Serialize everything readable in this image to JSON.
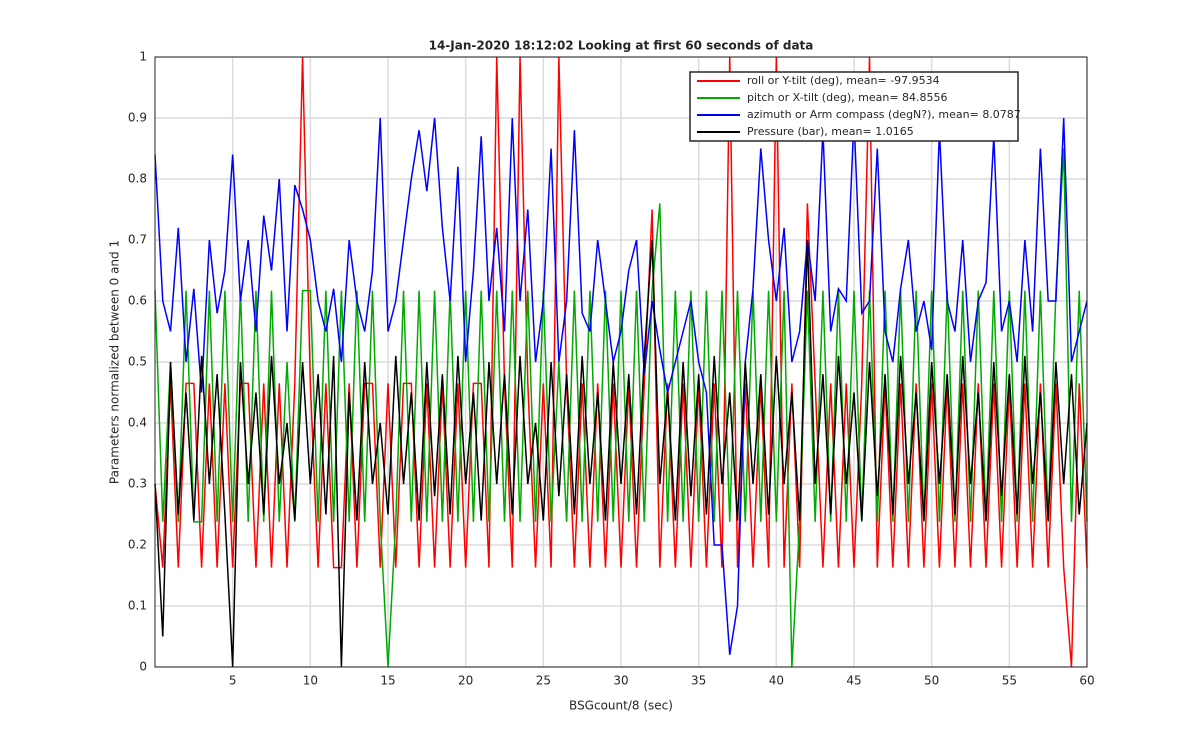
{
  "chart_data": {
    "type": "line",
    "title": "14-Jan-2020 18:12:02 Looking at first 60 seconds of data",
    "x_label": "BSGcount/8 (sec)",
    "y_label": "Parameters normalized between 0 and 1",
    "x": [
      0,
      0.5,
      1,
      1.5,
      2,
      2.5,
      3,
      3.5,
      4,
      4.5,
      5,
      5.5,
      6,
      6.5,
      7,
      7.5,
      8,
      8.5,
      9,
      9.5,
      10,
      10.5,
      11,
      11.5,
      12,
      12.5,
      13,
      13.5,
      14,
      14.5,
      15,
      15.5,
      16,
      16.5,
      17,
      17.5,
      18,
      18.5,
      19,
      19.5,
      20,
      20.5,
      21,
      21.5,
      22,
      22.5,
      23,
      23.5,
      24,
      24.5,
      25,
      25.5,
      26,
      26.5,
      27,
      27.5,
      28,
      28.5,
      29,
      29.5,
      30,
      30.5,
      31,
      31.5,
      32,
      32.5,
      33,
      33.5,
      34,
      34.5,
      35,
      35.5,
      36,
      36.5,
      37,
      37.5,
      38,
      38.5,
      39,
      39.5,
      40,
      40.5,
      41,
      41.5,
      42,
      42.5,
      43,
      43.5,
      44,
      44.5,
      45,
      45.5,
      46,
      46.5,
      47,
      47.5,
      48,
      48.5,
      49,
      49.5,
      50,
      50.5,
      51,
      51.5,
      52,
      52.5,
      53,
      53.5,
      54,
      54.5,
      55,
      55.5,
      56,
      56.5,
      57,
      57.5,
      58,
      58.5,
      59,
      59.5,
      60
    ],
    "series": [
      {
        "name": "roll or Y-tilt (deg), mean= -97.9534",
        "color": "#ff0000",
        "values": [
          0.3,
          0.163,
          0.465,
          0.163,
          0.465,
          0.465,
          0.163,
          0.465,
          0.163,
          0.465,
          0.163,
          0.465,
          0.465,
          0.163,
          0.465,
          0.163,
          0.465,
          0.163,
          0.465,
          1,
          0.465,
          0.163,
          0.465,
          0.163,
          0.163,
          0.465,
          0.163,
          0.465,
          0.465,
          0.163,
          0.465,
          0.163,
          0.465,
          0.465,
          0.163,
          0.465,
          0.163,
          0.465,
          0.163,
          0.465,
          0.163,
          0.465,
          0.465,
          0.163,
          1,
          0.465,
          0.163,
          1,
          0.465,
          0.163,
          0.465,
          0.163,
          1,
          0.465,
          0.163,
          0.465,
          0.163,
          0.465,
          0.163,
          0.465,
          0.163,
          0.465,
          0.163,
          0.465,
          0.75,
          0.163,
          0.465,
          0.163,
          0.465,
          0.163,
          0.465,
          0.163,
          0.465,
          0.163,
          1,
          0.163,
          0.465,
          0.163,
          0.465,
          0.163,
          1,
          0.163,
          0.465,
          0.163,
          0.76,
          0.465,
          0.163,
          0.465,
          0.163,
          0.465,
          0.163,
          0.465,
          1,
          0.163,
          0.465,
          0.163,
          0.465,
          0.163,
          0.465,
          0.163,
          0.465,
          0.163,
          0.465,
          0.163,
          0.465,
          0.163,
          0.465,
          0.163,
          0.465,
          0.163,
          0.465,
          0.163,
          0.465,
          0.163,
          0.465,
          0.163,
          0.465,
          0.163,
          0,
          0.465,
          0.163
        ]
      },
      {
        "name": "pitch or X-tilt (deg), mean= 84.8556",
        "color": "#00aa00",
        "values": [
          0.617,
          0.238,
          0.5,
          0.238,
          0.617,
          0.238,
          0.238,
          0.617,
          0.238,
          0.617,
          0.238,
          0.617,
          0.238,
          0.617,
          0.238,
          0.617,
          0.238,
          0.5,
          0.238,
          0.617,
          0.617,
          0.238,
          0.617,
          0.238,
          0.617,
          0.238,
          0.617,
          0.238,
          0.617,
          0.238,
          0,
          0.238,
          0.617,
          0.238,
          0.617,
          0.238,
          0.617,
          0.238,
          0.617,
          0.238,
          0.617,
          0.238,
          0.617,
          0.238,
          0.617,
          0.238,
          0.617,
          0.238,
          0.617,
          0.238,
          0.617,
          0.238,
          0.5,
          0.238,
          0.617,
          0.238,
          0.617,
          0.238,
          0.617,
          0.238,
          0.617,
          0.238,
          0.617,
          0.238,
          0.617,
          0.76,
          0.238,
          0.617,
          0.238,
          0.617,
          0.238,
          0.617,
          0.238,
          0.617,
          0.238,
          0.617,
          0.238,
          0.617,
          0.238,
          0.617,
          0.238,
          0.617,
          0,
          0.238,
          0.617,
          0.238,
          0.617,
          0.238,
          0.617,
          0.238,
          0.617,
          0.238,
          0.617,
          0.238,
          0.617,
          0.238,
          0.617,
          0.238,
          0.617,
          0.238,
          0.617,
          0.238,
          0.617,
          0.238,
          0.617,
          0.238,
          0.617,
          0.238,
          0.617,
          0.238,
          0.617,
          0.238,
          0.617,
          0.238,
          0.617,
          0.238,
          0.617,
          0.85,
          0.238,
          0.617,
          0.238
        ]
      },
      {
        "name": "azimuth or Arm compass (degN?), mean= 8.0787",
        "color": "#0000ff",
        "values": [
          0.84,
          0.6,
          0.55,
          0.72,
          0.5,
          0.62,
          0.45,
          0.7,
          0.58,
          0.65,
          0.84,
          0.6,
          0.7,
          0.55,
          0.74,
          0.65,
          0.8,
          0.55,
          0.79,
          0.75,
          0.7,
          0.6,
          0.55,
          0.62,
          0.5,
          0.7,
          0.6,
          0.55,
          0.65,
          0.9,
          0.55,
          0.6,
          0.7,
          0.8,
          0.88,
          0.78,
          0.9,
          0.72,
          0.6,
          0.82,
          0.5,
          0.65,
          0.87,
          0.6,
          0.72,
          0.55,
          0.9,
          0.6,
          0.75,
          0.5,
          0.6,
          0.85,
          0.5,
          0.6,
          0.88,
          0.58,
          0.55,
          0.7,
          0.6,
          0.5,
          0.55,
          0.65,
          0.7,
          0.48,
          0.6,
          0.52,
          0.45,
          0.5,
          0.55,
          0.6,
          0.5,
          0.45,
          0.2,
          0.2,
          0.02,
          0.1,
          0.5,
          0.62,
          0.85,
          0.7,
          0.6,
          0.72,
          0.5,
          0.55,
          0.7,
          0.6,
          0.88,
          0.55,
          0.62,
          0.6,
          0.9,
          0.58,
          0.6,
          0.85,
          0.55,
          0.5,
          0.62,
          0.7,
          0.55,
          0.6,
          0.52,
          0.88,
          0.6,
          0.55,
          0.7,
          0.5,
          0.6,
          0.63,
          0.87,
          0.55,
          0.6,
          0.5,
          0.7,
          0.55,
          0.85,
          0.6,
          0.6,
          0.9,
          0.5,
          0.55,
          0.6
        ]
      },
      {
        "name": "Pressure (bar), mean= 1.0165",
        "color": "#000000",
        "values": [
          0.3,
          0.05,
          0.5,
          0.25,
          0.45,
          0.24,
          0.51,
          0.3,
          0.48,
          0.25,
          0,
          0.5,
          0.3,
          0.45,
          0.25,
          0.51,
          0.3,
          0.4,
          0.24,
          0.5,
          0.3,
          0.48,
          0.25,
          0.51,
          0,
          0.45,
          0.24,
          0.5,
          0.3,
          0.4,
          0.25,
          0.51,
          0.3,
          0.45,
          0.24,
          0.5,
          0.28,
          0.48,
          0.25,
          0.51,
          0.3,
          0.45,
          0.24,
          0.5,
          0.3,
          0.48,
          0.25,
          0.51,
          0.3,
          0.4,
          0.24,
          0.5,
          0.28,
          0.48,
          0.25,
          0.51,
          0.3,
          0.45,
          0.24,
          0.5,
          0.3,
          0.48,
          0.25,
          0.51,
          0.7,
          0.3,
          0.45,
          0.24,
          0.5,
          0.28,
          0.48,
          0.25,
          0.51,
          0.3,
          0.45,
          0.24,
          0.5,
          0.3,
          0.48,
          0.25,
          0.51,
          0.3,
          0.45,
          0.24,
          0.7,
          0.3,
          0.48,
          0.25,
          0.51,
          0.3,
          0.45,
          0.24,
          0.5,
          0.28,
          0.48,
          0.25,
          0.51,
          0.3,
          0.45,
          0.24,
          0.5,
          0.3,
          0.48,
          0.25,
          0.51,
          0.3,
          0.45,
          0.24,
          0.5,
          0.28,
          0.48,
          0.25,
          0.51,
          0.3,
          0.45,
          0.24,
          0.5,
          0.3,
          0.48,
          0.25,
          0.4
        ]
      }
    ],
    "xlim": [
      0,
      60
    ],
    "xticks": [
      5,
      10,
      15,
      20,
      25,
      30,
      35,
      40,
      45,
      50,
      55,
      60
    ],
    "ylim": [
      0,
      1
    ],
    "yticks": [
      0,
      0.1,
      0.2,
      0.3,
      0.4,
      0.5,
      0.6,
      0.7,
      0.8,
      0.9,
      1
    ],
    "grid": true,
    "legend": "top-right"
  }
}
